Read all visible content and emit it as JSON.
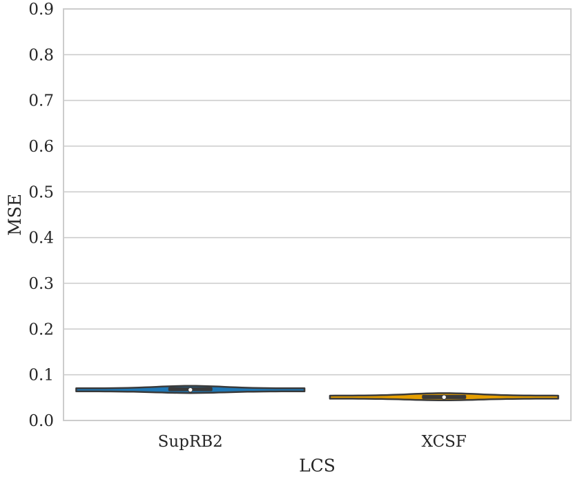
{
  "chart_data": {
    "type": "violin",
    "title": "",
    "xlabel": "LCS",
    "ylabel": "MSE",
    "ylim": [
      0.0,
      0.9
    ],
    "yticks": [
      "0.0",
      "0.1",
      "0.2",
      "0.3",
      "0.4",
      "0.5",
      "0.6",
      "0.7",
      "0.8",
      "0.9"
    ],
    "categories": [
      "SupRB2",
      "XCSF"
    ],
    "grid": true,
    "series": [
      {
        "category": "SupRB2",
        "color": "#1f77b4",
        "median": 0.067,
        "q1": 0.064,
        "q3": 0.073,
        "min": 0.063,
        "max": 0.074
      },
      {
        "category": "XCSF",
        "color": "#e69f00",
        "median": 0.051,
        "q1": 0.047,
        "q3": 0.056,
        "min": 0.046,
        "max": 0.058
      }
    ]
  }
}
